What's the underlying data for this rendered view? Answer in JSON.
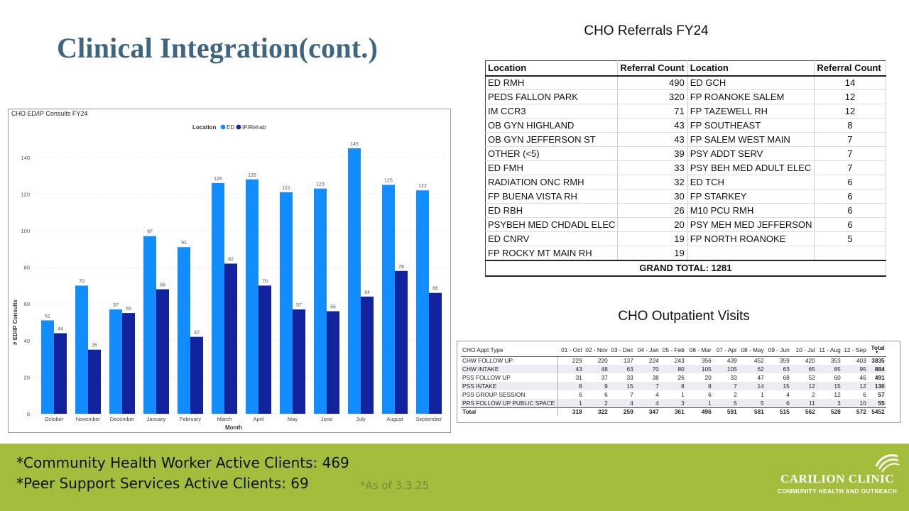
{
  "slide": {
    "title": "Clinical Integration(cont.)"
  },
  "consults_chart": {
    "heading": "CHO ED/IP Consults FY24",
    "legend_title": "Location",
    "xlabel": "Month",
    "ylabel": "# ED/IP Consults"
  },
  "chart_data": {
    "type": "bar",
    "title": "CHO ED/IP Consults FY24",
    "xlabel": "Month",
    "ylabel": "# ED/IP Consults",
    "ylim": [
      0,
      150
    ],
    "yticks": [
      0,
      20,
      40,
      60,
      80,
      100,
      120,
      140
    ],
    "grid": true,
    "legend": "top-center",
    "categories": [
      "October",
      "November",
      "December",
      "January",
      "February",
      "March",
      "April",
      "May",
      "June",
      "July",
      "August",
      "September"
    ],
    "series": [
      {
        "name": "ED",
        "color": "#118dff",
        "values": [
          51,
          70,
          57,
          97,
          91,
          126,
          128,
          121,
          123,
          145,
          125,
          122
        ]
      },
      {
        "name": "IP/Rehab",
        "color": "#12239e",
        "values": [
          44,
          35,
          55,
          68,
          42,
          82,
          70,
          57,
          56,
          64,
          78,
          66
        ]
      }
    ]
  },
  "referrals": {
    "title": "CHO Referrals FY24",
    "headers": [
      "Location",
      "Referral Count",
      "Location",
      "Referral Count"
    ],
    "left": [
      [
        "ED RMH",
        "490"
      ],
      [
        "PEDS FALLON PARK",
        "320"
      ],
      [
        "IM CCR3",
        "71"
      ],
      [
        "OB GYN HIGHLAND",
        "43"
      ],
      [
        "OB GYN JEFFERSON ST",
        "43"
      ],
      [
        "OTHER (<5)",
        "39"
      ],
      [
        "ED FMH",
        "33"
      ],
      [
        "RADIATION ONC RMH",
        "32"
      ],
      [
        "FP BUENA VISTA RH",
        "30"
      ],
      [
        "ED RBH",
        "26"
      ],
      [
        "PSYBEH MED CHDADL ELEC",
        "20"
      ],
      [
        "ED CNRV",
        "19"
      ],
      [
        "FP ROCKY MT MAIN RH",
        "19"
      ]
    ],
    "right": [
      [
        "ED GCH",
        "14"
      ],
      [
        "FP ROANOKE SALEM",
        "12"
      ],
      [
        "FP TAZEWELL RH",
        "12"
      ],
      [
        "FP SOUTHEAST",
        "8"
      ],
      [
        "FP SALEM WEST MAIN",
        "7"
      ],
      [
        "PSY ADDT SERV",
        "7"
      ],
      [
        "PSY BEH MED ADULT ELEC",
        "7"
      ],
      [
        "ED TCH",
        "6"
      ],
      [
        "FP STARKEY",
        "6"
      ],
      [
        "M10 PCU RMH",
        "6"
      ],
      [
        "PSY MEH MED JEFFERSON",
        "6"
      ],
      [
        "FP NORTH ROANOKE",
        "5"
      ],
      [
        "",
        ""
      ]
    ],
    "grand_total": "GRAND TOTAL: 1281"
  },
  "outpatient": {
    "title": "CHO Outpatient Visits",
    "headers": [
      "CHO Appt Type",
      "01 - Oct",
      "02 - Nov",
      "03 - Dec",
      "04 - Jan",
      "05 - Feb",
      "06 - Mar",
      "07 - Apr",
      "08 - May",
      "09 - Jun",
      "10 - Jul",
      "11 - Aug",
      "12 - Sep",
      "Total"
    ],
    "rows": [
      [
        "CHW FOLLOW UP",
        "229",
        "220",
        "137",
        "224",
        "243",
        "356",
        "439",
        "452",
        "359",
        "420",
        "353",
        "403",
        "3835"
      ],
      [
        "CHW INTAKE",
        "43",
        "48",
        "63",
        "70",
        "80",
        "105",
        "105",
        "62",
        "63",
        "65",
        "85",
        "95",
        "884"
      ],
      [
        "PSS FOLLOW UP",
        "31",
        "37",
        "33",
        "38",
        "26",
        "20",
        "33",
        "47",
        "68",
        "52",
        "60",
        "46",
        "491"
      ],
      [
        "PSS INTAKE",
        "8",
        "9",
        "15",
        "7",
        "8",
        "8",
        "7",
        "14",
        "15",
        "12",
        "15",
        "12",
        "130"
      ],
      [
        "PSS GROUP SESSION",
        "6",
        "6",
        "7",
        "4",
        "1",
        "6",
        "2",
        "1",
        "4",
        "2",
        "12",
        "6",
        "57"
      ],
      [
        "PRS FOLLOW UP PUBLIC SPACE",
        "1",
        "2",
        "4",
        "4",
        "3",
        "1",
        "5",
        "5",
        "6",
        "11",
        "3",
        "10",
        "55"
      ]
    ],
    "total_row": [
      "Total",
      "318",
      "322",
      "259",
      "347",
      "361",
      "496",
      "591",
      "581",
      "515",
      "562",
      "528",
      "572",
      "5452"
    ]
  },
  "footer": {
    "line1": "*Community Health Worker Active Clients: 469",
    "line2": "*Peer Support Services Active Clients: 69",
    "note": "*As of 3.3.25",
    "brand_name": "CARILION CLINIC",
    "brand_sub": "COMMUNITY HEALTH AND OUTREACH"
  },
  "colors": {
    "title": "#3f6680",
    "footer_band": "#a4bd3c",
    "ed_bar": "#118dff",
    "ip_bar": "#12239e"
  }
}
